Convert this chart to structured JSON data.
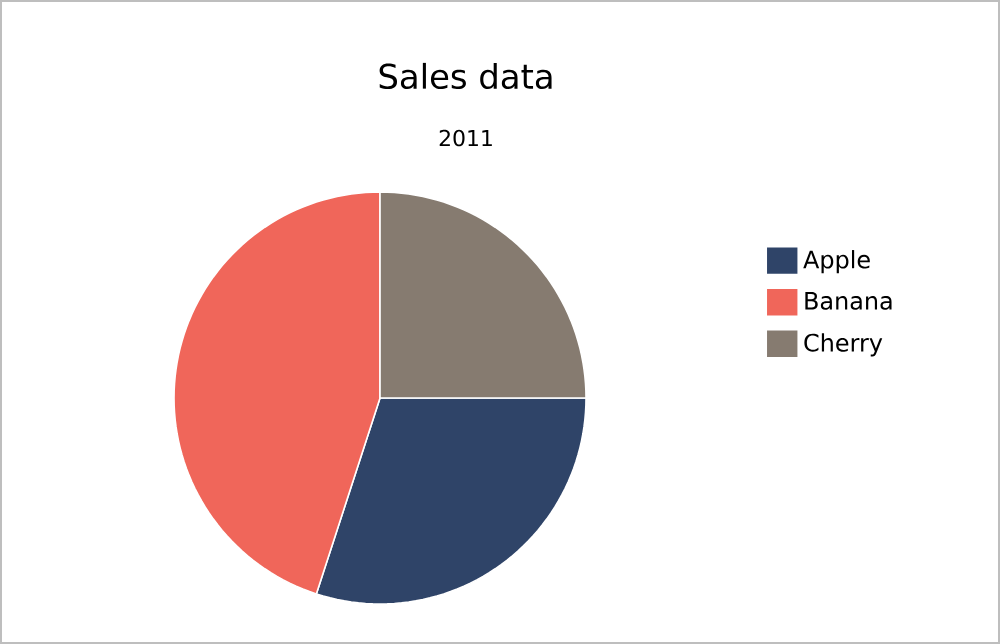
{
  "chart_data": {
    "type": "pie",
    "title": "Sales data",
    "subtitle": "2011",
    "categories": [
      "Apple",
      "Banana",
      "Cherry"
    ],
    "values": [
      30,
      45,
      25
    ],
    "colors": [
      "#2f4468",
      "#f0665a",
      "#867b70"
    ],
    "legend": "right"
  }
}
